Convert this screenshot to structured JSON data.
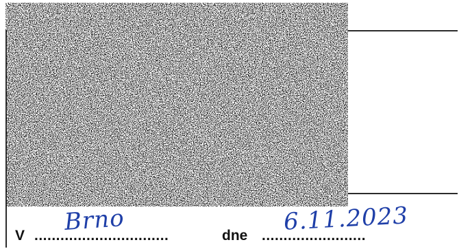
{
  "form": {
    "place_label": "V",
    "place_dots": "...............................",
    "place_value": "Brno",
    "date_label": "dne",
    "date_dots": "........................",
    "date_value": "6.11.2023"
  },
  "colors": {
    "ink_handwriting": "#1f3fa8",
    "ink_print": "#111111"
  }
}
